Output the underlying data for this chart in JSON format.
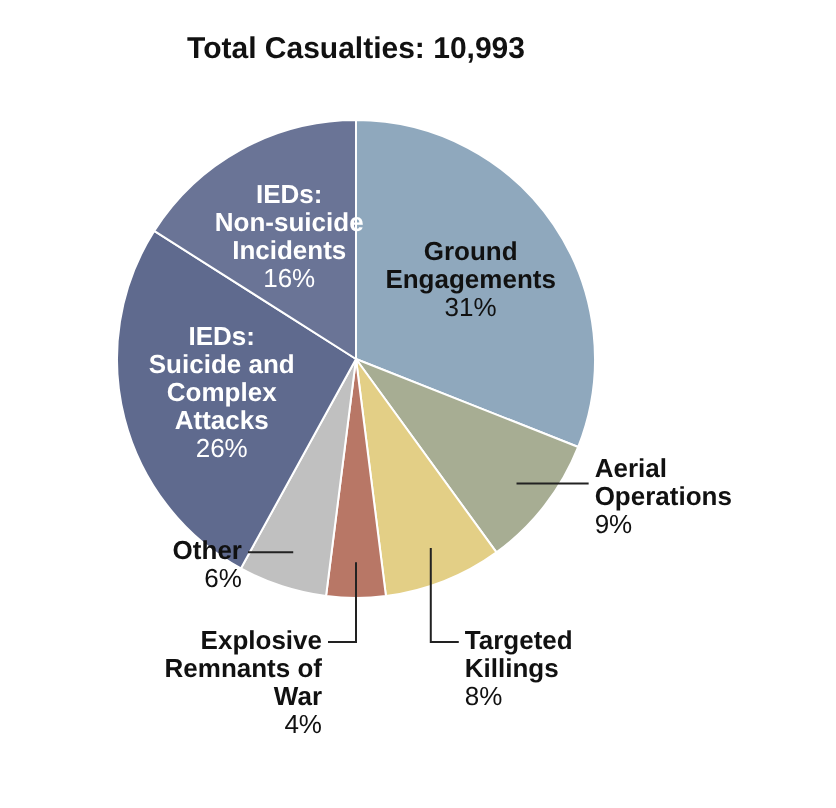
{
  "chart_data": {
    "type": "pie",
    "title": "Total Casualties: 10,993",
    "categories": [
      "Ground Engagements",
      "Aerial Operations",
      "Targeted Killings",
      "Explosive Remnants of War",
      "Other",
      "IEDs: Suicide and Complex Attacks",
      "IEDs: Non-suicide Incidents"
    ],
    "values": [
      31,
      9,
      8,
      4,
      6,
      26,
      16
    ],
    "colors": [
      "#8fa8bd",
      "#a7ad93",
      "#e3cf86",
      "#b87766",
      "#c0c0c0",
      "#5f6a8e",
      "#6a7496"
    ],
    "value_labels": [
      "31%",
      "9%",
      "8%",
      "4%",
      "6%",
      "26%",
      "16%"
    ],
    "legend": false
  }
}
